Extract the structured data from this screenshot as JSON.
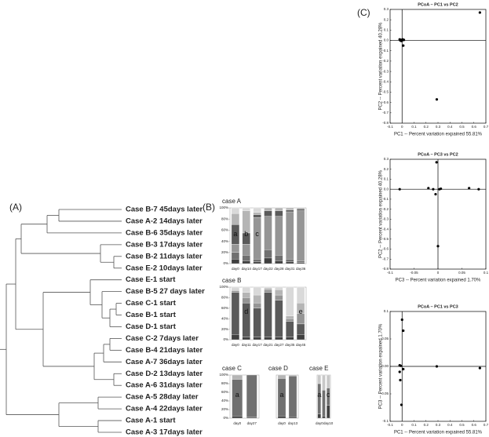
{
  "panel_labels": [
    "(A)",
    "(B)",
    "(C)"
  ],
  "dendrogram": {
    "leaves": [
      "Case B-7 45days later",
      "Case A-2 14days later",
      "Case B-6 35days later",
      "Case B-3 17days later",
      "Case B-2 11days later",
      "Case E-2 10days later",
      "Case E-1 start",
      "Case B-5 27 days later",
      "Case C-1 start",
      "Case B-1 start",
      "Case D-1 start",
      "Case C-2 7days later",
      "Case B-4 21days later",
      "Case A-7 36days later",
      "Case D-2 13days later",
      "Case A-6 31days later",
      "Case A-5 28day later",
      "Case A-4 22days later",
      "Case A-1 start",
      "Case A-3 17days later"
    ]
  },
  "chart_data": [
    {
      "type": "bar",
      "title": "case A",
      "categories": [
        "day0",
        "day14",
        "day17",
        "day22",
        "day28",
        "day31",
        "day36"
      ],
      "ylim": [
        0,
        100
      ],
      "yticks": [
        {
          "value": 0,
          "label": "0%"
        },
        {
          "value": 20,
          "label": "20%"
        },
        {
          "value": 40,
          "label": "40%"
        },
        {
          "value": 60,
          "label": "60%"
        },
        {
          "value": 80,
          "label": "80%"
        },
        {
          "value": 100,
          "label": "100%"
        }
      ],
      "series": [
        {
          "color": "#404040",
          "values": [
            8,
            5,
            3,
            10,
            5,
            3,
            2
          ]
        },
        {
          "color": "#707070",
          "values": [
            12,
            10,
            5,
            15,
            10,
            5,
            3
          ]
        },
        {
          "color": "#959595",
          "values": [
            15,
            20,
            75,
            60,
            70,
            85,
            90
          ]
        },
        {
          "color": "#5a5a5a",
          "values": [
            35,
            20,
            5,
            10,
            10,
            3,
            3
          ]
        },
        {
          "color": "#b5b5b5",
          "values": [
            20,
            40,
            4,
            5,
            5,
            4,
            2
          ]
        },
        {
          "color": "#d9d9d9",
          "values": [
            10,
            5,
            8,
            0,
            0,
            0,
            0
          ]
        }
      ],
      "annotations": [
        {
          "text": "a",
          "category": "day0"
        },
        {
          "text": "b",
          "category": "day14"
        },
        {
          "text": "c",
          "category": "day17"
        }
      ]
    },
    {
      "type": "bar",
      "title": "case B",
      "categories": [
        "day0",
        "day11",
        "day17",
        "day21",
        "day27",
        "day35",
        "day45"
      ],
      "ylim": [
        0,
        100
      ],
      "yticks": [
        {
          "value": 0,
          "label": "0%"
        },
        {
          "value": 20,
          "label": "20%"
        },
        {
          "value": 40,
          "label": "40%"
        },
        {
          "value": 60,
          "label": "60%"
        },
        {
          "value": 80,
          "label": "80%"
        },
        {
          "value": 100,
          "label": "100%"
        }
      ],
      "series": [
        {
          "color": "#404040",
          "values": [
            10,
            5,
            5,
            5,
            5,
            5,
            10
          ]
        },
        {
          "color": "#5a5a5a",
          "values": [
            80,
            65,
            55,
            85,
            70,
            30,
            20
          ]
        },
        {
          "color": "#959595",
          "values": [
            3,
            10,
            10,
            5,
            10,
            5,
            20
          ]
        },
        {
          "color": "#b5b5b5",
          "values": [
            2,
            10,
            15,
            3,
            10,
            5,
            20
          ]
        },
        {
          "color": "#d9d9d9",
          "values": [
            5,
            10,
            15,
            2,
            5,
            55,
            30
          ]
        }
      ],
      "annotations": [
        {
          "text": "d",
          "category": "day11"
        },
        {
          "text": "e",
          "category": "day45"
        }
      ]
    },
    {
      "type": "bar",
      "title": "case C",
      "categories": [
        "day0",
        "day27"
      ],
      "ylim": [
        0,
        100
      ],
      "yticks": [
        {
          "value": 0,
          "label": "0%"
        },
        {
          "value": 20,
          "label": "20%"
        },
        {
          "value": 40,
          "label": "40%"
        },
        {
          "value": 60,
          "label": "60%"
        },
        {
          "value": 80,
          "label": "80%"
        },
        {
          "value": 100,
          "label": "100%"
        }
      ],
      "series": [
        {
          "color": "#404040",
          "values": [
            5,
            2
          ]
        },
        {
          "color": "#707070",
          "values": [
            85,
            98
          ]
        },
        {
          "color": "#b5b5b5",
          "values": [
            10,
            0
          ]
        }
      ],
      "annotations": [
        {
          "text": "a",
          "category": "day0"
        }
      ]
    },
    {
      "type": "bar",
      "title": "case D",
      "categories": [
        "day0",
        "day13"
      ],
      "ylim": [
        0,
        100
      ],
      "series": [
        {
          "color": "#404040",
          "values": [
            5,
            3
          ]
        },
        {
          "color": "#707070",
          "values": [
            87,
            95
          ]
        },
        {
          "color": "#b5b5b5",
          "values": [
            8,
            2
          ]
        }
      ],
      "annotations": [
        {
          "text": "a",
          "category": "day0"
        }
      ]
    },
    {
      "type": "bar",
      "title": "case E",
      "categories": [
        "day0",
        null,
        "day10"
      ],
      "ylim": [
        0,
        100
      ],
      "series": [
        {
          "color": "#404040",
          "values": [
            10,
            5,
            30
          ]
        },
        {
          "color": "#707070",
          "values": [
            70,
            60,
            40
          ]
        },
        {
          "color": "#c8c8c8",
          "values": [
            20,
            35,
            30
          ]
        }
      ],
      "annotations": [
        {
          "text": "a",
          "category": "day0"
        },
        {
          "text": "c",
          "category": "day10"
        }
      ]
    },
    {
      "type": "scatter",
      "title": "PCoA – PC1 vs PC2",
      "x_label": "PC1 -- Percent variation expained 55.81%",
      "y_label": "PC2 -- Percent variation expained 40.28%",
      "xlim": [
        -0.1,
        0.7
      ],
      "xticks": [
        -0.1,
        0,
        0.1,
        0.2,
        0.3,
        0.4,
        0.5,
        0.6,
        0.7
      ],
      "ylim": [
        -0.8,
        0.3
      ],
      "yticks": [
        0.3,
        0.2,
        0.1,
        {
          "value": 0,
          "label": "0.0"
        },
        -0.1,
        -0.2,
        -0.3,
        -0.4,
        -0.5,
        -0.6,
        -0.7,
        -0.8
      ],
      "color": "#000000",
      "x": [
        -0.02,
        -0.015,
        -0.01,
        -0.005,
        0,
        0.005,
        0.01,
        0.015,
        0.65,
        0.29
      ],
      "y": [
        0.01,
        0,
        0.005,
        -0.005,
        0,
        0.01,
        -0.05,
        0.005,
        0.27,
        -0.57
      ]
    },
    {
      "type": "scatter",
      "title": "PCoA – PC3 vs PC2",
      "x_label": "PC3 -- Percent variation expained 1.70%",
      "y_label": "PC2 -- Percent variation expained 40.28%",
      "xlim": [
        -0.1,
        0.1
      ],
      "xticks": [
        -0.1,
        -0.05,
        0,
        0.05,
        0.1
      ],
      "ylim": [
        -0.8,
        0.3
      ],
      "yticks": [
        0.3,
        0.2,
        0.1,
        {
          "value": 0,
          "label": "0.0"
        },
        -0.1,
        -0.2,
        -0.3,
        -0.4,
        -0.5,
        -0.6,
        -0.7,
        -0.8
      ],
      "color": "#000000",
      "x": [
        -0.08,
        -0.02,
        -0.01,
        -0.003,
        0,
        -0.005,
        0.065,
        0.085,
        0.003,
        0.006
      ],
      "y": [
        0,
        0.01,
        0,
        0.27,
        -0.57,
        -0.05,
        0.01,
        0,
        0,
        0.005
      ]
    },
    {
      "type": "scatter",
      "title": "PCoA – PC1 vs PC3",
      "x_label": "PC1 -- Percent variation expained 55.81%",
      "y_label": "PC3 -- Percent variation expained 1.70%",
      "xlim": [
        -0.1,
        0.7
      ],
      "xticks": [
        -0.1,
        0,
        0.1,
        0.2,
        0.3,
        0.4,
        0.5,
        0.6,
        0.7
      ],
      "ylim": [
        -0.1,
        0.1
      ],
      "yticks": [
        0.1,
        0.05,
        {
          "value": 0,
          "label": "0.00"
        },
        -0.05,
        -0.1
      ],
      "color": "#000000",
      "x": [
        0,
        0.01,
        -0.02,
        -0.01,
        -0.02,
        -0.015,
        0.01,
        -0.005,
        0.29,
        0.65
      ],
      "y": [
        0.085,
        0.065,
        0.002,
        0.001,
        -0.01,
        -0.025,
        -0.005,
        -0.07,
        0,
        -0.003
      ]
    }
  ]
}
